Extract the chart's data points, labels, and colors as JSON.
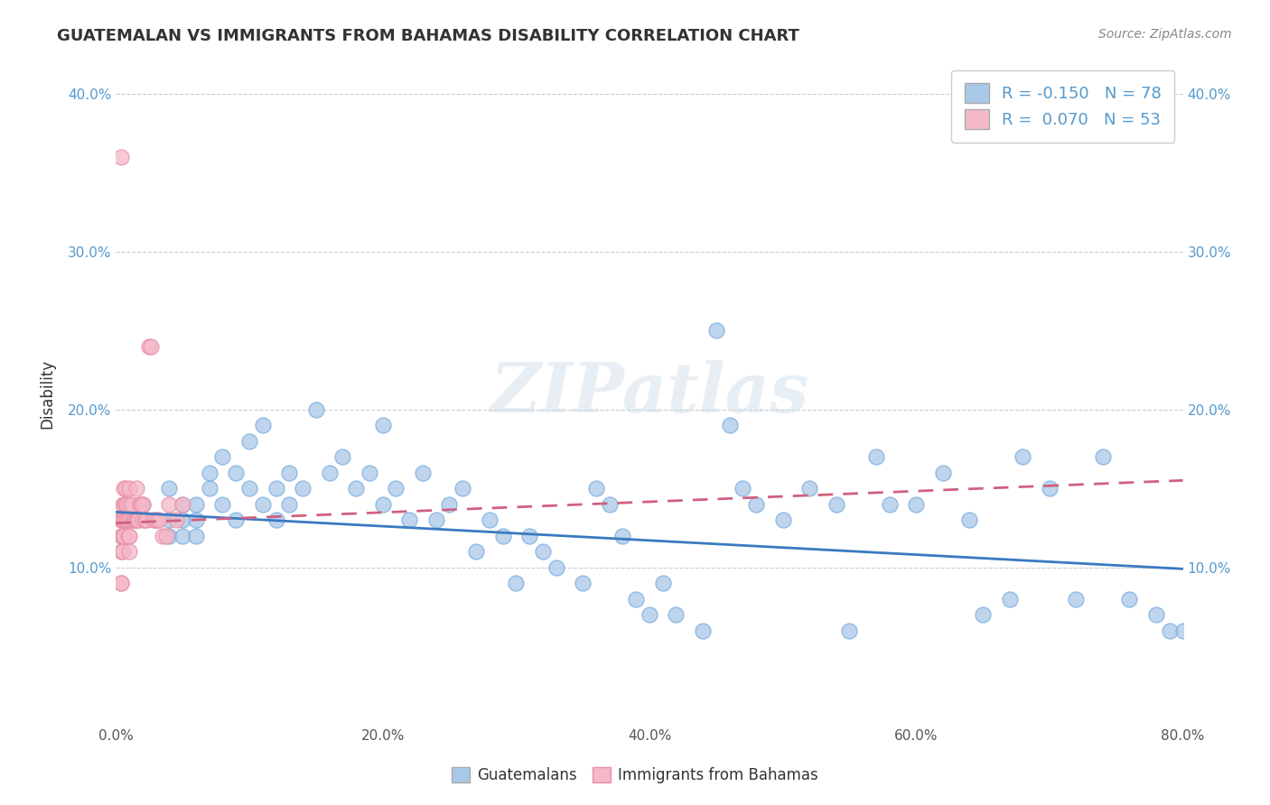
{
  "title": "GUATEMALAN VS IMMIGRANTS FROM BAHAMAS DISABILITY CORRELATION CHART",
  "source": "Source: ZipAtlas.com",
  "xlabel_legend1": "Guatemalans",
  "xlabel_legend2": "Immigrants from Bahamas",
  "ylabel": "Disability",
  "xmin": 0.0,
  "xmax": 0.8,
  "ymin": 0.0,
  "ymax": 0.42,
  "yticks": [
    0.1,
    0.2,
    0.3,
    0.4
  ],
  "ytick_labels": [
    "10.0%",
    "20.0%",
    "30.0%",
    "40.0%"
  ],
  "xticks": [
    0.0,
    0.2,
    0.4,
    0.6,
    0.8
  ],
  "xtick_labels": [
    "0.0%",
    "20.0%",
    "40.0%",
    "60.0%",
    "80.0%"
  ],
  "R_blue": -0.15,
  "N_blue": 78,
  "R_pink": 0.07,
  "N_pink": 53,
  "blue_color": "#a8c8e8",
  "blue_edge_color": "#7aadde",
  "pink_color": "#f4b8c8",
  "pink_edge_color": "#e890a8",
  "blue_line_color": "#3a7abf",
  "pink_line_color": "#d06080",
  "watermark": "ZIPatlas",
  "title_color": "#333333",
  "source_color": "#888888",
  "tick_color_y": "#5599cc",
  "tick_color_x": "#555555",
  "blue_scatter_x": [
    0.02,
    0.03,
    0.04,
    0.04,
    0.04,
    0.05,
    0.05,
    0.05,
    0.06,
    0.06,
    0.06,
    0.07,
    0.07,
    0.08,
    0.08,
    0.09,
    0.09,
    0.1,
    0.1,
    0.11,
    0.11,
    0.12,
    0.12,
    0.13,
    0.13,
    0.14,
    0.15,
    0.16,
    0.17,
    0.18,
    0.19,
    0.2,
    0.2,
    0.21,
    0.22,
    0.23,
    0.24,
    0.25,
    0.26,
    0.27,
    0.28,
    0.29,
    0.3,
    0.31,
    0.32,
    0.33,
    0.35,
    0.36,
    0.37,
    0.38,
    0.39,
    0.4,
    0.41,
    0.42,
    0.44,
    0.45,
    0.46,
    0.47,
    0.48,
    0.5,
    0.52,
    0.54,
    0.55,
    0.57,
    0.58,
    0.6,
    0.62,
    0.64,
    0.65,
    0.67,
    0.68,
    0.7,
    0.72,
    0.74,
    0.76,
    0.78,
    0.79,
    0.8
  ],
  "blue_scatter_y": [
    0.14,
    0.13,
    0.15,
    0.13,
    0.12,
    0.13,
    0.14,
    0.12,
    0.13,
    0.14,
    0.12,
    0.15,
    0.16,
    0.14,
    0.17,
    0.13,
    0.16,
    0.15,
    0.18,
    0.14,
    0.19,
    0.15,
    0.13,
    0.16,
    0.14,
    0.15,
    0.2,
    0.16,
    0.17,
    0.15,
    0.16,
    0.19,
    0.14,
    0.15,
    0.13,
    0.16,
    0.13,
    0.14,
    0.15,
    0.11,
    0.13,
    0.12,
    0.09,
    0.12,
    0.11,
    0.1,
    0.09,
    0.15,
    0.14,
    0.12,
    0.08,
    0.07,
    0.09,
    0.07,
    0.06,
    0.25,
    0.19,
    0.15,
    0.14,
    0.13,
    0.15,
    0.14,
    0.06,
    0.17,
    0.14,
    0.14,
    0.16,
    0.13,
    0.07,
    0.08,
    0.17,
    0.15,
    0.08,
    0.17,
    0.08,
    0.07,
    0.06,
    0.06
  ],
  "pink_scatter_x": [
    0.004,
    0.004,
    0.004,
    0.004,
    0.004,
    0.005,
    0.005,
    0.005,
    0.005,
    0.005,
    0.005,
    0.006,
    0.006,
    0.006,
    0.006,
    0.007,
    0.007,
    0.007,
    0.008,
    0.008,
    0.009,
    0.009,
    0.01,
    0.01,
    0.01,
    0.01,
    0.01,
    0.012,
    0.012,
    0.013,
    0.014,
    0.015,
    0.015,
    0.016,
    0.017,
    0.018,
    0.019,
    0.02,
    0.02,
    0.022,
    0.023,
    0.025,
    0.026,
    0.028,
    0.03,
    0.032,
    0.035,
    0.038,
    0.04,
    0.045,
    0.05,
    0.004,
    0.004
  ],
  "pink_scatter_y": [
    0.36,
    0.13,
    0.13,
    0.12,
    0.11,
    0.14,
    0.13,
    0.13,
    0.12,
    0.12,
    0.11,
    0.15,
    0.14,
    0.13,
    0.12,
    0.15,
    0.14,
    0.13,
    0.14,
    0.13,
    0.13,
    0.12,
    0.15,
    0.14,
    0.13,
    0.12,
    0.11,
    0.14,
    0.13,
    0.13,
    0.13,
    0.15,
    0.13,
    0.13,
    0.13,
    0.14,
    0.14,
    0.14,
    0.13,
    0.13,
    0.13,
    0.24,
    0.24,
    0.13,
    0.13,
    0.13,
    0.12,
    0.12,
    0.14,
    0.13,
    0.14,
    0.09,
    0.09
  ],
  "blue_line_x": [
    0.0,
    0.8
  ],
  "blue_line_y": [
    0.135,
    0.099
  ],
  "pink_line_x": [
    0.0,
    0.8
  ],
  "pink_line_y": [
    0.128,
    0.155
  ]
}
